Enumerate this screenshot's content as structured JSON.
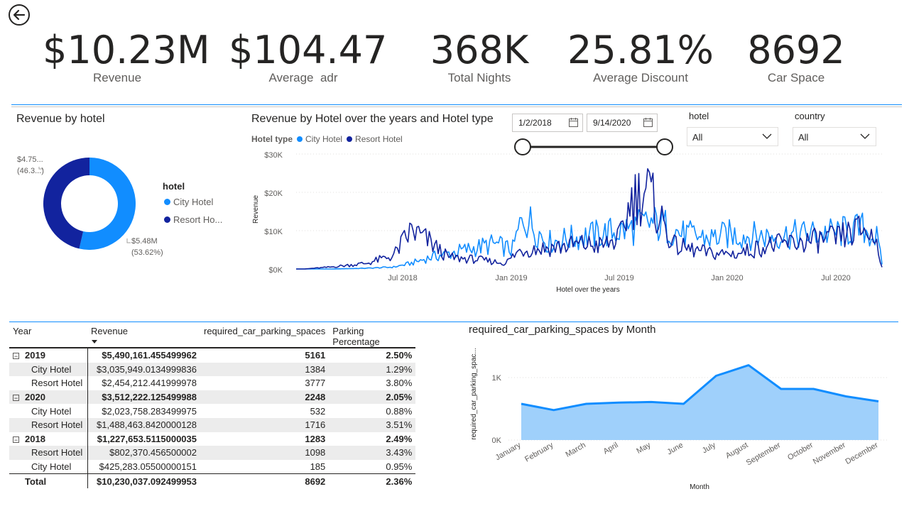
{
  "kpis": [
    {
      "value": "$10.23M",
      "label": "Revenue"
    },
    {
      "value": "$104.47",
      "label": "Average  adr"
    },
    {
      "value": "368K",
      "label": "Total Nights"
    },
    {
      "value": "25.81%",
      "label": "Average Discount"
    },
    {
      "value": "8692",
      "label": "Car Space"
    }
  ],
  "donut": {
    "title": "Revenue by hotel",
    "legend_title": "hotel",
    "legend_items": [
      "City Hotel",
      "Resort Ho..."
    ],
    "label_resort_value": "$4.75...",
    "label_resort_pct": "(46.3...)",
    "label_city_value": "$5.48M",
    "label_city_pct": "(53.62%)"
  },
  "line": {
    "title": "Revenue by Hotel over the years and Hotel type",
    "legend_title": "Hotel type",
    "legend_items": [
      "City Hotel",
      "Resort Hotel"
    ],
    "y_ticks": [
      "$30K",
      "$20K",
      "$10K",
      "$0K"
    ],
    "x_ticks": [
      "Jul 2018",
      "Jan 2019",
      "Jul 2019",
      "Jan 2020",
      "Jul 2020"
    ],
    "y_title": "Revenue",
    "x_title": "Hotel over the years"
  },
  "date_slicer": {
    "start": "1/2/2018",
    "end": "9/14/2020"
  },
  "slicers": {
    "hotel": {
      "label": "hotel",
      "value": "All"
    },
    "country": {
      "label": "country",
      "value": "All"
    }
  },
  "matrix": {
    "headers": [
      "Year",
      "Revenue",
      "required_car_parking_spaces",
      "Parking Percentage"
    ],
    "rows": [
      {
        "label": "2019",
        "revenue": "$5,490,161.455499962",
        "spaces": "5161",
        "pct": "2.50%"
      },
      {
        "label": "City Hotel",
        "revenue": "$3,035,949.0134999836",
        "spaces": "1384",
        "pct": "1.29%"
      },
      {
        "label": "Resort Hotel",
        "revenue": "$2,454,212.441999978",
        "spaces": "3777",
        "pct": "3.80%"
      },
      {
        "label": "2020",
        "revenue": "$3,512,222.125499988",
        "spaces": "2248",
        "pct": "2.05%"
      },
      {
        "label": "City Hotel",
        "revenue": "$2,023,758.283499975",
        "spaces": "532",
        "pct": "0.88%"
      },
      {
        "label": "Resort Hotel",
        "revenue": "$1,488,463.8420000128",
        "spaces": "1716",
        "pct": "3.51%"
      },
      {
        "label": "2018",
        "revenue": "$1,227,653.5115000035",
        "spaces": "1283",
        "pct": "2.49%"
      },
      {
        "label": "Resort Hotel",
        "revenue": "$802,370.456500002",
        "spaces": "1098",
        "pct": "3.43%"
      },
      {
        "label": "City Hotel",
        "revenue": "$425,283.05500000151",
        "spaces": "185",
        "pct": "0.95%"
      },
      {
        "label": "Total",
        "revenue": "$10,230,037.092499953",
        "spaces": "8692",
        "pct": "2.36%"
      }
    ]
  },
  "area": {
    "title": "required_car_parking_spaces by Month",
    "y_title": "required_car_parking_spac...",
    "x_title": "Month",
    "y_ticks": [
      "1K",
      "0K"
    ]
  },
  "colors": {
    "city": "#118dff",
    "resort": "#12239e",
    "area_fill": "#9fd0fb",
    "accent": "#118dff"
  },
  "chart_data": [
    {
      "type": "pie",
      "title": "Revenue by hotel",
      "categories": [
        "City Hotel",
        "Resort Hotel"
      ],
      "values": [
        5.48,
        4.75
      ],
      "unit": "$M",
      "percentages": [
        53.62,
        46.38
      ]
    },
    {
      "type": "line",
      "title": "Revenue by Hotel over the years and Hotel type",
      "xlabel": "Hotel over the years",
      "ylabel": "Revenue",
      "ylim": [
        0,
        30000
      ],
      "x_range": [
        "2018-01-02",
        "2020-09-14"
      ],
      "series": [
        {
          "name": "City Hotel",
          "x": [
            "2018-01-15",
            "2018-03-01",
            "2018-05-01",
            "2018-06-15",
            "2018-07-15",
            "2018-08-15",
            "2018-09-15",
            "2018-10-15",
            "2018-12-01",
            "2019-01-01",
            "2019-01-20",
            "2019-03-01",
            "2019-05-01",
            "2019-06-15",
            "2019-07-20",
            "2019-08-20",
            "2019-09-20",
            "2019-10-15",
            "2019-12-01",
            "2020-01-01",
            "2020-03-01",
            "2020-05-01",
            "2020-07-01",
            "2020-08-15",
            "2020-09-05",
            "2020-09-14"
          ],
          "values": [
            0,
            0,
            200,
            500,
            1500,
            3000,
            4000,
            5000,
            6500,
            5000,
            14000,
            7000,
            8500,
            9500,
            10500,
            12000,
            11000,
            9000,
            8000,
            9000,
            8500,
            9000,
            9500,
            10500,
            8000,
            1500
          ]
        },
        {
          "name": "Resort Hotel",
          "x": [
            "2018-01-15",
            "2018-03-01",
            "2018-05-01",
            "2018-06-15",
            "2018-07-01",
            "2018-07-15",
            "2018-08-15",
            "2018-09-15",
            "2018-11-01",
            "2018-12-20",
            "2019-01-15",
            "2019-03-01",
            "2019-05-01",
            "2019-06-01",
            "2019-07-01",
            "2019-07-20",
            "2019-08-15",
            "2019-09-05",
            "2019-10-01",
            "2019-12-01",
            "2020-01-15",
            "2020-03-01",
            "2020-05-01",
            "2020-07-01",
            "2020-08-15",
            "2020-09-05",
            "2020-09-14"
          ],
          "values": [
            0,
            500,
            1500,
            3500,
            7000,
            10000,
            7000,
            3000,
            2500,
            1500,
            5000,
            5500,
            6500,
            6000,
            8000,
            18000,
            21000,
            14000,
            6000,
            4000,
            4000,
            6000,
            7000,
            8000,
            10500,
            7000,
            800
          ]
        }
      ]
    },
    {
      "type": "area",
      "title": "required_car_parking_spaces by Month",
      "xlabel": "Month",
      "ylabel": "required_car_parking_spac...",
      "categories": [
        "January",
        "February",
        "March",
        "April",
        "May",
        "June",
        "July",
        "August",
        "September",
        "October",
        "November",
        "December"
      ],
      "values": [
        580,
        480,
        580,
        600,
        610,
        580,
        1030,
        1200,
        820,
        820,
        700,
        620
      ],
      "ylim": [
        0,
        1400
      ]
    }
  ]
}
